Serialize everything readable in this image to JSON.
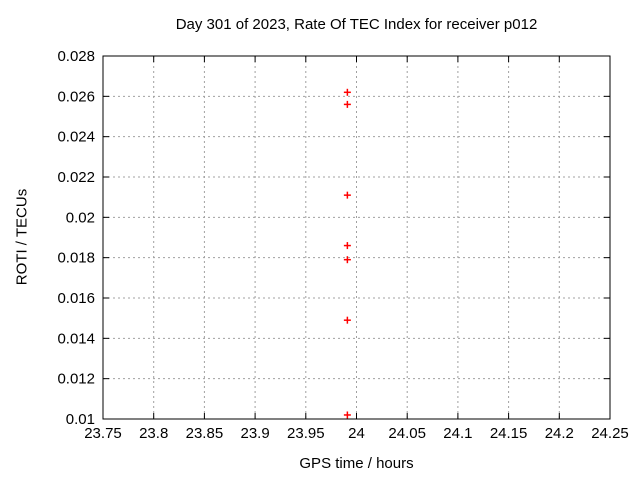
{
  "chart_data": {
    "type": "scatter",
    "title": "Day 301 of 2023, Rate Of TEC Index for receiver p012",
    "xlabel": "GPS time / hours",
    "ylabel": "ROTI / TECUs",
    "xlim": [
      23.75,
      24.25
    ],
    "ylim": [
      0.01,
      0.028
    ],
    "xticks": {
      "values": [
        23.75,
        23.8,
        23.85,
        23.9,
        23.95,
        24,
        24.05,
        24.1,
        24.15,
        24.2,
        24.25
      ],
      "labels": [
        "23.75",
        "23.8",
        "23.85",
        "23.9",
        "23.95",
        "24",
        "24.05",
        "24.1",
        "24.15",
        "24.2",
        "24.25"
      ]
    },
    "yticks": {
      "values": [
        0.01,
        0.012,
        0.014,
        0.016,
        0.018,
        0.02,
        0.022,
        0.024,
        0.026,
        0.028
      ],
      "labels": [
        "0.01",
        "0.012",
        "0.014",
        "0.016",
        "0.018",
        "0.02",
        "0.022",
        "0.024",
        "0.026",
        "0.028"
      ]
    },
    "grid": true,
    "legend_position": "none",
    "series": [
      {
        "name": "ROTI",
        "marker": "plus",
        "color": "#ff0000",
        "points": [
          {
            "x": 23.991,
            "y": 0.0262
          },
          {
            "x": 23.991,
            "y": 0.0256
          },
          {
            "x": 23.991,
            "y": 0.0211
          },
          {
            "x": 23.991,
            "y": 0.0186
          },
          {
            "x": 23.991,
            "y": 0.0179
          },
          {
            "x": 23.991,
            "y": 0.0149
          },
          {
            "x": 23.991,
            "y": 0.0102
          }
        ]
      }
    ],
    "colors": {
      "background": "#ffffff",
      "border": "#000000",
      "grid": "#a0a0a0",
      "text": "#000000",
      "marker": "#ff0000"
    }
  }
}
